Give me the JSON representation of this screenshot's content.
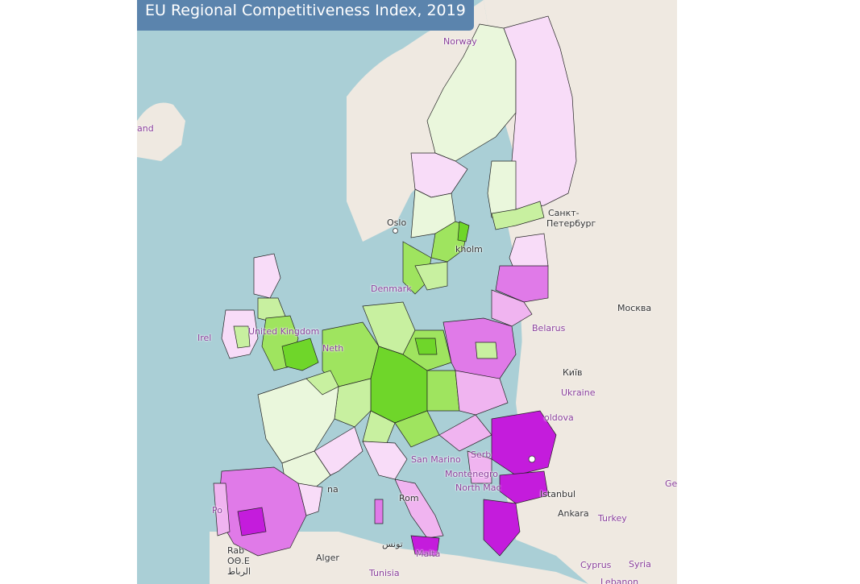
{
  "title": "EU Regional Competitiveness Index, 2019",
  "map_labels": {
    "norway": "Norway",
    "iceland_part": "and",
    "oslo": "Oslo",
    "stockholm_part": "kholm",
    "denmark_part": "Denmark",
    "ireland_part": "Irel",
    "uk_part": "United Kingdom",
    "neth_part": "Neth",
    "st_petersburg_1": "Санкт-",
    "st_petersburg_2": "Петербург",
    "moscow": "Москва",
    "belarus": "Belarus",
    "kyiv": "Київ",
    "ukraine": "Ukraine",
    "moldova_part": "oldova",
    "serbia_part": "Serb",
    "montenegro_part": "Montenegro",
    "north_mac_part": "North Mac",
    "san_marino_part": "San Marino",
    "istanbul": "Istanbul",
    "ankara": "Ankara",
    "turkey": "Turkey",
    "roma_part": "Rom",
    "barcelona_part": "na",
    "portugal_part": "Po",
    "rabat_1": "Rab",
    "rabat_2": "ΟΘ.Ε",
    "rabat_3": "الرباط",
    "alger": "Alger",
    "tunis_ar": "تونس",
    "tunisia": "Tunisia",
    "malta": "Malta",
    "cyprus_part": "Cyprus",
    "syria": "Syria",
    "lebanon_part": "Lebanon",
    "georgia_part": "Ge"
  },
  "colors": {
    "sea": "#aacfd6",
    "land": "#efe9e1",
    "title_bg": "#5b84ad",
    "very_light_green": "#eaf7dc",
    "light_green": "#c8f0a0",
    "mid_green": "#9fe45f",
    "strong_green": "#6fd62a",
    "very_light_pink": "#f8dcf8",
    "light_pink": "#f0b4f0",
    "mid_purple": "#e07ae8",
    "strong_purple": "#c41cdc"
  }
}
